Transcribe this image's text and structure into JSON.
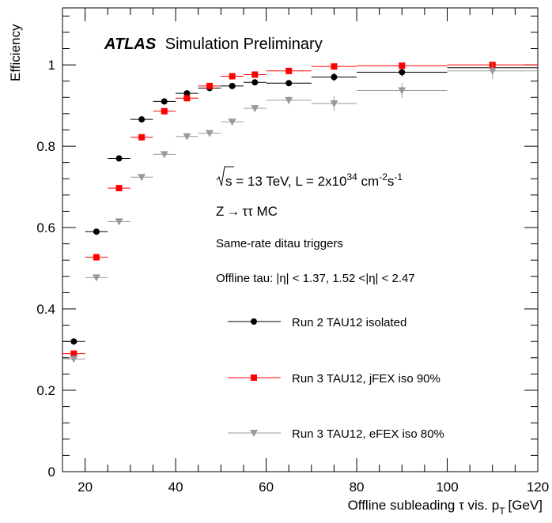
{
  "chart_data": {
    "type": "scatter",
    "xlabel": "Offline subleading τ vis. p",
    "xlabel_sub": "T",
    "xlabel_unit": "[GeV]",
    "ylabel": "Efficiency",
    "xlim": [
      15,
      120
    ],
    "ylim": [
      0,
      1.14
    ],
    "xticks": [
      20,
      40,
      60,
      80,
      100,
      120
    ],
    "yticks": [
      0,
      0.2,
      0.4,
      0.6,
      0.8,
      1
    ],
    "ytick_labels": [
      "0",
      "0.2",
      "0.4",
      "0.6",
      "0.8",
      "1"
    ],
    "grid": false,
    "legend_position": "right",
    "annotations": {
      "atlas": "ATLAS",
      "atlas_suffix": "Simulation Preliminary",
      "sqrt_s": "s",
      "energy_text": " = 13 TeV, L = 2x10",
      "energy_exp": "34",
      "energy_unit": " cm",
      "energy_unit_exp": "-2",
      "energy_s": "s",
      "energy_s_exp": "-1",
      "process_z": "Z",
      "process_arrow": "→",
      "process_tt": "ττ MC",
      "triggers": "Same-rate ditau triggers",
      "offline_tau": "Offline tau: |η| < 1.37, 1.52 <|η| < 2.47"
    },
    "series": [
      {
        "name": "Run 2 TAU12 isolated",
        "color": "#000000",
        "marker": "circle",
        "x": [
          17.5,
          22.5,
          27.5,
          32.5,
          37.5,
          42.5,
          47.5,
          52.5,
          57.5,
          65,
          75,
          90,
          110
        ],
        "xerr": [
          2.5,
          2.5,
          2.5,
          2.5,
          2.5,
          2.5,
          2.5,
          2.5,
          2.5,
          5,
          5,
          10,
          10
        ],
        "y": [
          0.32,
          0.59,
          0.77,
          0.866,
          0.91,
          0.93,
          0.943,
          0.948,
          0.957,
          0.955,
          0.97,
          0.982,
          0.993
        ],
        "yerr": [
          0.006,
          0.005,
          0.005,
          0.004,
          0.004,
          0.004,
          0.004,
          0.004,
          0.004,
          0.006,
          0.01,
          0.01,
          0.012
        ]
      },
      {
        "name": "Run 3 TAU12, jFEX iso 90%",
        "color": "#ff0000",
        "marker": "square",
        "x": [
          17.5,
          22.5,
          27.5,
          32.5,
          37.5,
          42.5,
          47.5,
          52.5,
          57.5,
          65,
          75,
          90,
          110
        ],
        "xerr": [
          2.5,
          2.5,
          2.5,
          2.5,
          2.5,
          2.5,
          2.5,
          2.5,
          2.5,
          5,
          5,
          10,
          10
        ],
        "y": [
          0.29,
          0.527,
          0.697,
          0.822,
          0.886,
          0.918,
          0.948,
          0.972,
          0.976,
          0.985,
          0.996,
          0.998,
          1.0
        ],
        "yerr": [
          0.006,
          0.005,
          0.005,
          0.004,
          0.004,
          0.004,
          0.003,
          0.003,
          0.003,
          0.004,
          0.004,
          0.004,
          0.004
        ]
      },
      {
        "name": "Run 3 TAU12, eFEX iso 80%",
        "color": "#999999",
        "marker": "triangle-down",
        "x": [
          17.5,
          22.5,
          27.5,
          32.5,
          37.5,
          42.5,
          47.5,
          52.5,
          57.5,
          65,
          75,
          90,
          110
        ],
        "xerr": [
          2.5,
          2.5,
          2.5,
          2.5,
          2.5,
          2.5,
          2.5,
          2.5,
          2.5,
          5,
          5,
          10,
          10
        ],
        "y": [
          0.277,
          0.477,
          0.615,
          0.724,
          0.78,
          0.824,
          0.832,
          0.86,
          0.893,
          0.913,
          0.905,
          0.937,
          0.985
        ],
        "yerr": [
          0.006,
          0.005,
          0.005,
          0.005,
          0.005,
          0.006,
          0.006,
          0.007,
          0.009,
          0.01,
          0.018,
          0.018,
          0.02
        ]
      }
    ]
  }
}
